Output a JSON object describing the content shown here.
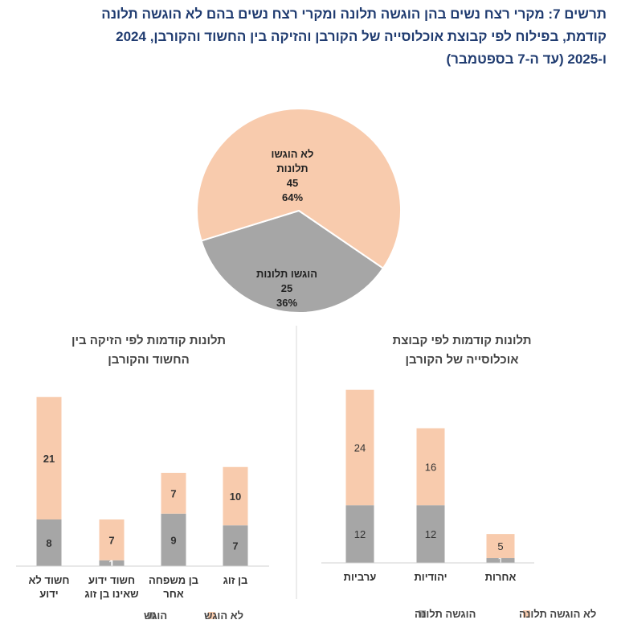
{
  "title_lines": [
    "תרשים 7: מקרי רצח נשים בהן הוגשה תלונה ומקרי רצח נשים בהם לא הוגשה תלונה",
    "קודמת, בפילוח לפי קבוצת אוכלוסייה של הקורבן והזיקה בין החשוד והקורבן, 2024",
    "ו-2025 (עד ה-7 בספטמבר)"
  ],
  "colors": {
    "filed": "#a6a6a6",
    "not_filed": "#f8cbad",
    "title": "#1f3b70"
  },
  "chart_data": [
    {
      "type": "pie",
      "title": "",
      "slices": [
        {
          "label_lines": [
            "לא הוגשו",
            "תלונות"
          ],
          "value": 45,
          "percent": "64%",
          "color": "#f8cbad"
        },
        {
          "label_lines": [
            "הוגשו תלונות"
          ],
          "value": 25,
          "percent": "36%",
          "color": "#a6a6a6"
        }
      ]
    },
    {
      "type": "bar",
      "stacked": true,
      "title_lines": [
        "תלונות קודמות לפי הזיקה בין",
        "החשוד והקורבן"
      ],
      "categories": [
        [
          "חשוד לא",
          "ידוע"
        ],
        [
          "חשוד ידוע",
          "שאינו בן זוג"
        ],
        [
          "בן משפחה",
          "אחר"
        ],
        [
          "בן זוג"
        ]
      ],
      "series": [
        {
          "name": "הוגש",
          "values": [
            8,
            1,
            9,
            7
          ],
          "color": "#a6a6a6"
        },
        {
          "name": "לא הוגש",
          "values": [
            21,
            7,
            7,
            10
          ],
          "color": "#f8cbad"
        }
      ],
      "legend": "bottom"
    },
    {
      "type": "bar",
      "stacked": true,
      "title_lines": [
        "תלונות קודמות לפי קבוצת",
        "אוכלוסייה של הקורבן"
      ],
      "categories": [
        [
          "ערביות"
        ],
        [
          "יהודיות"
        ],
        [
          "אחרות"
        ]
      ],
      "series": [
        {
          "name": "הוגשה תלונה",
          "values": [
            12,
            12,
            1
          ],
          "color": "#a6a6a6"
        },
        {
          "name": "לא הוגשה תלונה",
          "values": [
            24,
            16,
            5
          ],
          "color": "#f8cbad"
        }
      ],
      "legend": "bottom"
    }
  ]
}
